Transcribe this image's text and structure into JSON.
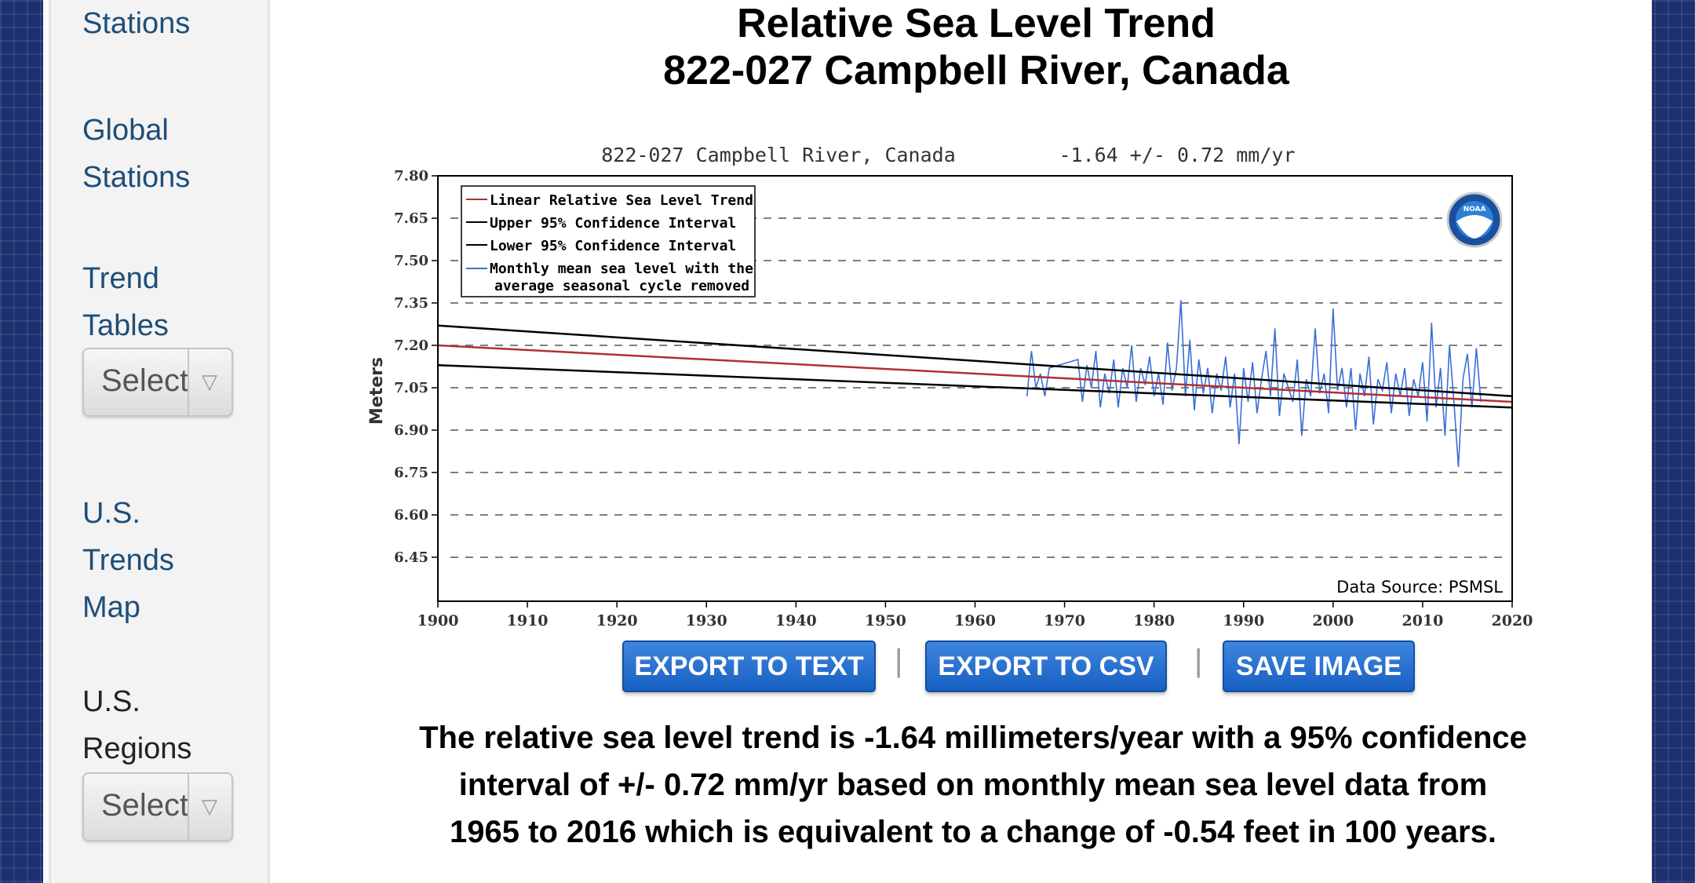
{
  "sidebar": {
    "links": [
      {
        "lines": [
          "Stations"
        ]
      },
      {
        "lines": [
          "Global",
          "Stations"
        ]
      },
      {
        "lines": [
          "Trend",
          "Tables"
        ]
      },
      {
        "lines": [
          "U.S.",
          "Trends",
          "Map"
        ]
      },
      {
        "lines": [
          "U.S.",
          "Regions"
        ]
      }
    ],
    "selects": [
      {
        "value": "Select"
      },
      {
        "value": "Select"
      }
    ]
  },
  "title": {
    "line1": "Relative Sea Level Trend",
    "line2": "822-027 Campbell River, Canada"
  },
  "buttons": {
    "export_text": "EXPORT TO TEXT",
    "export_csv": "EXPORT TO CSV",
    "save_image": "SAVE IMAGE",
    "separator": "|"
  },
  "summary": {
    "line1": "The relative sea level trend is -1.64 millimeters/year with a 95% confidence",
    "line2": "interval of +/- 0.72 mm/yr based on monthly mean sea level data from",
    "line3": "1965 to 2016 which is equivalent to a change of -0.54 feet in 100 years."
  },
  "chart_data": {
    "type": "line",
    "title": "822-027 Campbell River, Canada",
    "trend_label": "-1.64 +/-  0.72 mm/yr",
    "ylabel": "Meters",
    "xlabel": "",
    "xlim": [
      1900,
      2020
    ],
    "ylim": [
      6.3,
      7.8
    ],
    "x_ticks": [
      1900,
      1910,
      1920,
      1930,
      1940,
      1950,
      1960,
      1970,
      1980,
      1990,
      2000,
      2010,
      2020
    ],
    "y_ticks": [
      7.8,
      7.65,
      7.5,
      7.35,
      7.2,
      7.05,
      6.9,
      6.75,
      6.6,
      6.45
    ],
    "grid": "horizontal dashed",
    "legend_position": "top-left",
    "source_label": "Data Source: PSMSL",
    "logo_text": "NOAA",
    "colors": {
      "trend": "#b03030",
      "ci": "#000000",
      "monthly": "#3a6fd8"
    },
    "series": [
      {
        "name": "Linear Relative Sea Level Trend",
        "x": [
          1900,
          2020
        ],
        "y": [
          7.2,
          7.0
        ]
      },
      {
        "name": "Upper 95% Confidence Interval",
        "x": [
          1900,
          2020
        ],
        "y": [
          7.27,
          7.02
        ]
      },
      {
        "name": "Lower 95% Confidence Interval",
        "x": [
          1900,
          2020
        ],
        "y": [
          7.13,
          6.98
        ]
      },
      {
        "name": "Monthly mean sea level with the average seasonal cycle removed",
        "legend_lines": [
          "Monthly mean sea level with the",
          "average seasonal cycle removed"
        ],
        "x": [
          1965.8,
          1966.3,
          1966.8,
          1967.3,
          1967.8,
          1968.3,
          1971.5,
          1972.0,
          1972.5,
          1973.0,
          1973.5,
          1974.0,
          1974.5,
          1975.0,
          1975.5,
          1976.0,
          1976.5,
          1977.0,
          1977.5,
          1978.0,
          1978.5,
          1979.0,
          1979.5,
          1980.0,
          1980.5,
          1981.0,
          1981.5,
          1982.0,
          1982.5,
          1983.0,
          1983.5,
          1984.0,
          1984.5,
          1985.0,
          1985.5,
          1986.0,
          1986.5,
          1987.0,
          1987.5,
          1988.0,
          1988.5,
          1989.0,
          1989.5,
          1990.0,
          1990.5,
          1991.0,
          1991.5,
          1992.0,
          1992.5,
          1993.0,
          1993.5,
          1994.0,
          1994.5,
          1995.0,
          1995.5,
          1996.0,
          1996.5,
          1997.0,
          1997.5,
          1998.0,
          1998.5,
          1999.0,
          1999.5,
          2000.0,
          2000.5,
          2001.0,
          2001.5,
          2002.0,
          2002.5,
          2003.0,
          2003.5,
          2004.0,
          2004.5,
          2005.0,
          2005.5,
          2006.0,
          2006.5,
          2007.0,
          2007.5,
          2008.0,
          2008.5,
          2009.0,
          2009.5,
          2010.0,
          2010.5,
          2011.0,
          2011.5,
          2012.0,
          2012.5,
          2013.0,
          2013.5,
          2014.0,
          2014.5,
          2015.0,
          2015.5,
          2016.0,
          2016.5
        ],
        "y": [
          7.02,
          7.18,
          7.05,
          7.1,
          7.02,
          7.12,
          7.15,
          7.0,
          7.13,
          7.05,
          7.18,
          6.98,
          7.1,
          7.03,
          7.15,
          6.98,
          7.12,
          7.05,
          7.2,
          7.0,
          7.12,
          7.06,
          7.16,
          7.02,
          7.1,
          6.99,
          7.21,
          7.04,
          7.12,
          7.36,
          7.02,
          7.22,
          6.97,
          7.15,
          7.03,
          7.12,
          6.96,
          7.1,
          7.04,
          7.16,
          6.98,
          7.1,
          6.85,
          7.12,
          7.0,
          7.14,
          6.96,
          7.08,
          7.18,
          7.02,
          7.26,
          6.95,
          7.1,
          7.05,
          7.0,
          7.15,
          6.88,
          7.08,
          7.02,
          7.26,
          7.03,
          7.1,
          6.96,
          7.33,
          7.04,
          7.12,
          6.98,
          7.12,
          6.9,
          7.1,
          7.02,
          7.16,
          6.92,
          7.08,
          7.04,
          7.14,
          6.96,
          7.1,
          7.02,
          7.12,
          6.95,
          7.08,
          7.02,
          7.14,
          6.93,
          7.28,
          6.98,
          7.12,
          6.88,
          7.2,
          7.0,
          6.77,
          7.08,
          7.17,
          6.98,
          7.19,
          7.0
        ]
      }
    ]
  }
}
